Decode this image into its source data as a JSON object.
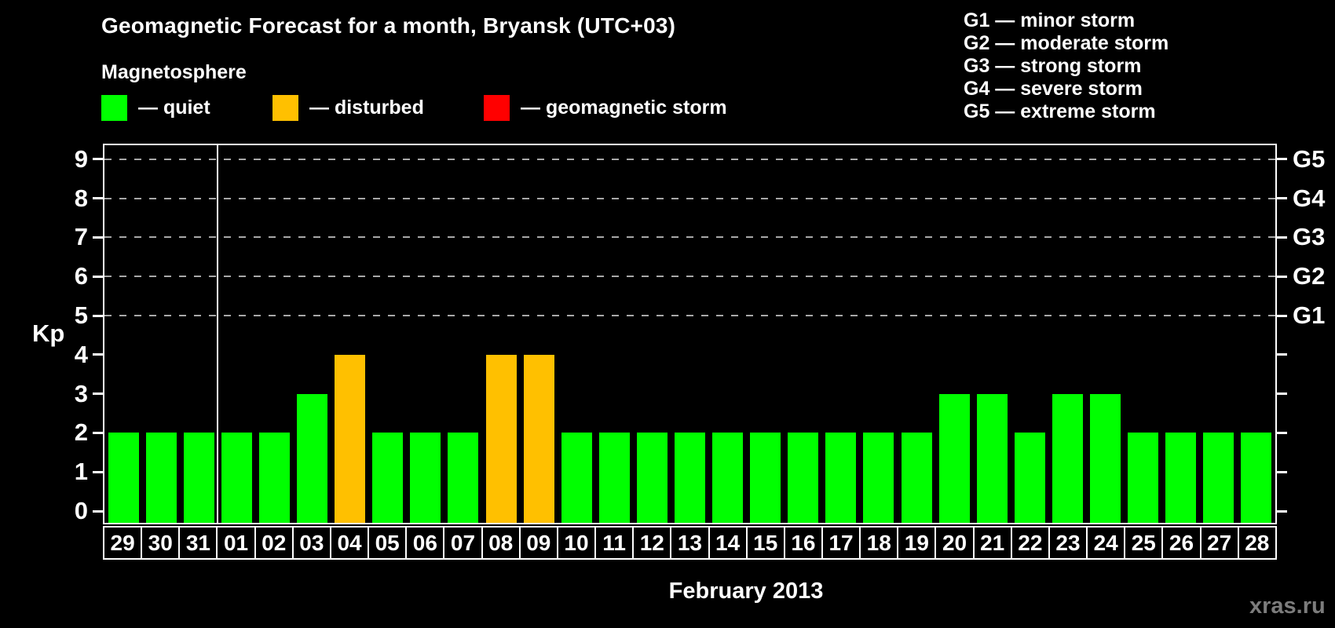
{
  "header": {
    "title": "Geomagnetic Forecast for a month, Bryansk (UTC+03)",
    "subtitle": "Magnetosphere"
  },
  "legend": [
    {
      "state": "quiet",
      "label": "— quiet",
      "color": "#00ff00"
    },
    {
      "state": "disturbed",
      "label": "— disturbed",
      "color": "#ffc000"
    },
    {
      "state": "storm",
      "label": "— geomagnetic storm",
      "color": "#ff0000"
    }
  ],
  "storm_scale": [
    "G1 — minor storm",
    "G2 — moderate storm",
    "G3 — strong storm",
    "G4 — severe storm",
    "G5 — extreme storm"
  ],
  "watermark": "xras.ru",
  "chart_data": {
    "type": "bar",
    "title": "Geomagnetic Forecast for a month, Bryansk (UTC+03)",
    "xlabel": "February 2013",
    "ylabel": "Kp",
    "ylim": [
      0,
      9
    ],
    "y_ticks": [
      0,
      1,
      2,
      3,
      4,
      5,
      6,
      7,
      8,
      9
    ],
    "gridlines_at": [
      5,
      6,
      7,
      8,
      9
    ],
    "grid_style": "dashed-horizontal",
    "legend_position": "top",
    "right_axis_labels": [
      {
        "value": 5,
        "label": "G1"
      },
      {
        "value": 6,
        "label": "G2"
      },
      {
        "value": 7,
        "label": "G3"
      },
      {
        "value": 8,
        "label": "G4"
      },
      {
        "value": 9,
        "label": "G5"
      }
    ],
    "colors": {
      "quiet": "#00ff00",
      "disturbed": "#ffc000",
      "storm": "#ff0000"
    },
    "month_separator_slot": 3,
    "days": [
      {
        "day": "29",
        "kp": 2,
        "state": "quiet"
      },
      {
        "day": "30",
        "kp": 2,
        "state": "quiet"
      },
      {
        "day": "31",
        "kp": 2,
        "state": "quiet"
      },
      {
        "day": "01",
        "kp": 2,
        "state": "quiet"
      },
      {
        "day": "02",
        "kp": 2,
        "state": "quiet"
      },
      {
        "day": "03",
        "kp": 3,
        "state": "quiet"
      },
      {
        "day": "04",
        "kp": 4,
        "state": "disturbed"
      },
      {
        "day": "05",
        "kp": 2,
        "state": "quiet"
      },
      {
        "day": "06",
        "kp": 2,
        "state": "quiet"
      },
      {
        "day": "07",
        "kp": 2,
        "state": "quiet"
      },
      {
        "day": "08",
        "kp": 4,
        "state": "disturbed"
      },
      {
        "day": "09",
        "kp": 4,
        "state": "disturbed"
      },
      {
        "day": "10",
        "kp": 2,
        "state": "quiet"
      },
      {
        "day": "11",
        "kp": 2,
        "state": "quiet"
      },
      {
        "day": "12",
        "kp": 2,
        "state": "quiet"
      },
      {
        "day": "13",
        "kp": 2,
        "state": "quiet"
      },
      {
        "day": "14",
        "kp": 2,
        "state": "quiet"
      },
      {
        "day": "15",
        "kp": 2,
        "state": "quiet"
      },
      {
        "day": "16",
        "kp": 2,
        "state": "quiet"
      },
      {
        "day": "17",
        "kp": 2,
        "state": "quiet"
      },
      {
        "day": "18",
        "kp": 2,
        "state": "quiet"
      },
      {
        "day": "19",
        "kp": 2,
        "state": "quiet"
      },
      {
        "day": "20",
        "kp": 3,
        "state": "quiet"
      },
      {
        "day": "21",
        "kp": 3,
        "state": "quiet"
      },
      {
        "day": "22",
        "kp": 2,
        "state": "quiet"
      },
      {
        "day": "23",
        "kp": 3,
        "state": "quiet"
      },
      {
        "day": "24",
        "kp": 3,
        "state": "quiet"
      },
      {
        "day": "25",
        "kp": 2,
        "state": "quiet"
      },
      {
        "day": "26",
        "kp": 2,
        "state": "quiet"
      },
      {
        "day": "27",
        "kp": 2,
        "state": "quiet"
      },
      {
        "day": "28",
        "kp": 2,
        "state": "quiet"
      }
    ]
  }
}
